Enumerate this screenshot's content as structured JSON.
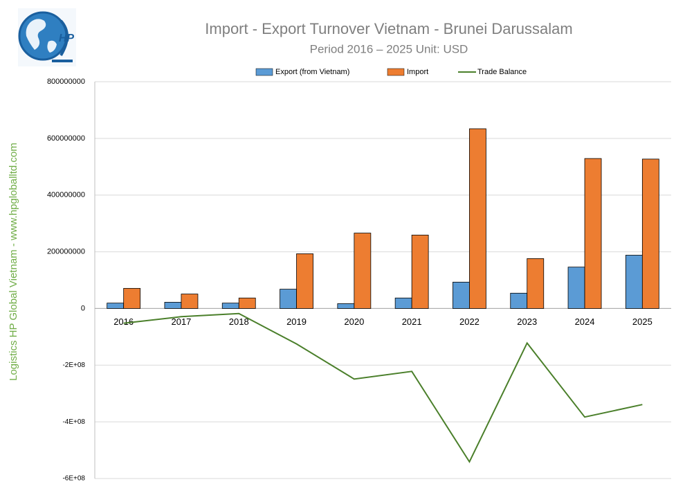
{
  "logo_text": "HP",
  "side_text": "Logistics HP Global Vietnam - www.hpgloballtd.com",
  "chart_data": {
    "type": "bar",
    "title": "Import - Export Turnover Vietnam - Brunei Darussalam",
    "subtitle": "Period 2016 – 2025  Unit: USD",
    "categories": [
      "2016",
      "2017",
      "2018",
      "2019",
      "2020",
      "2021",
      "2022",
      "2023",
      "2024",
      "2025"
    ],
    "series": [
      {
        "name": "Export (from Vietnam)",
        "type": "bar",
        "color": "#5b9bd5",
        "values": [
          19000000,
          22000000,
          19000000,
          68000000,
          17000000,
          37000000,
          93000000,
          54000000,
          146000000,
          188000000
        ]
      },
      {
        "name": "Import",
        "type": "bar",
        "color": "#ed7d31",
        "values": [
          71000000,
          51000000,
          37000000,
          193000000,
          266000000,
          259000000,
          634000000,
          176000000,
          529000000,
          527000000
        ]
      },
      {
        "name": "Trade Balance",
        "type": "line",
        "color": "#4a7f2a",
        "values": [
          -52000000,
          -29000000,
          -18000000,
          -125000000,
          -249000000,
          -222000000,
          -541000000,
          -122000000,
          -383000000,
          -339000000
        ]
      }
    ],
    "ylim": [
      -600000000,
      800000000
    ],
    "yticks": [
      {
        "value": -600000000,
        "label": "-6E+08"
      },
      {
        "value": -400000000,
        "label": "-4E+08"
      },
      {
        "value": -200000000,
        "label": "-2E+08"
      },
      0,
      200000000,
      400000000,
      600000000,
      800000000
    ],
    "grid": true,
    "legend": "top"
  }
}
